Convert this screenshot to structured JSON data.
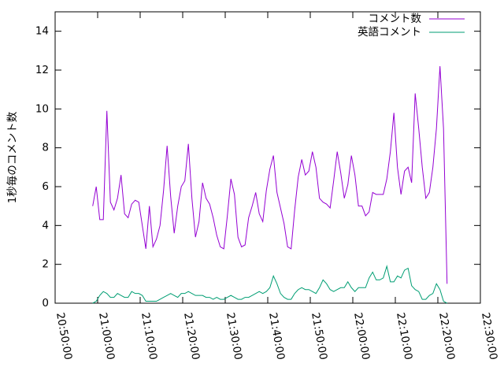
{
  "chart_data": {
    "type": "line",
    "y_label": "1秒毎のコメント数",
    "x": [
      "20:58:50",
      "20:59:40",
      "21:00:30",
      "21:01:20",
      "21:02:10",
      "21:03:00",
      "21:03:50",
      "21:04:40",
      "21:05:30",
      "21:06:20",
      "21:07:10",
      "21:08:00",
      "21:08:50",
      "21:09:40",
      "21:10:30",
      "21:11:20",
      "21:12:10",
      "21:13:00",
      "21:13:50",
      "21:14:40",
      "21:15:30",
      "21:16:20",
      "21:17:10",
      "21:18:00",
      "21:18:50",
      "21:19:40",
      "21:20:30",
      "21:21:20",
      "21:22:10",
      "21:23:00",
      "21:23:50",
      "21:24:40",
      "21:25:30",
      "21:26:20",
      "21:27:10",
      "21:28:00",
      "21:28:50",
      "21:29:40",
      "21:30:30",
      "21:31:20",
      "21:32:10",
      "21:33:00",
      "21:33:50",
      "21:34:40",
      "21:35:30",
      "21:36:20",
      "21:37:10",
      "21:38:00",
      "21:38:50",
      "21:39:40",
      "21:40:30",
      "21:41:20",
      "21:42:10",
      "21:43:00",
      "21:43:50",
      "21:44:40",
      "21:45:30",
      "21:46:20",
      "21:47:10",
      "21:48:00",
      "21:48:50",
      "21:49:40",
      "21:50:30",
      "21:51:20",
      "21:52:10",
      "21:53:00",
      "21:53:50",
      "21:54:40",
      "21:55:30",
      "21:56:20",
      "21:57:10",
      "21:58:00",
      "21:58:50",
      "21:59:40",
      "22:00:30",
      "22:01:20",
      "22:02:10",
      "22:03:00",
      "22:03:50",
      "22:04:40",
      "22:05:30",
      "22:06:20",
      "22:07:10",
      "22:08:00",
      "22:08:50",
      "22:09:40",
      "22:10:30",
      "22:11:20",
      "22:12:10",
      "22:13:00",
      "22:13:50",
      "22:14:40",
      "22:15:30",
      "22:16:20",
      "22:17:10",
      "22:18:00",
      "22:18:50",
      "22:19:40",
      "22:20:30",
      "22:21:20",
      "22:22:10"
    ],
    "series": [
      {
        "name": "コメント数",
        "color": "#9400d3",
        "values": [
          5.0,
          6.0,
          4.3,
          4.3,
          9.9,
          5.2,
          4.8,
          5.4,
          6.6,
          4.6,
          4.4,
          5.1,
          5.3,
          5.2,
          4.0,
          2.8,
          5.0,
          2.9,
          3.3,
          4.0,
          5.8,
          8.1,
          5.5,
          3.6,
          5.0,
          6.0,
          6.3,
          8.2,
          5.4,
          3.4,
          4.2,
          6.2,
          5.4,
          5.1,
          4.4,
          3.5,
          2.9,
          2.8,
          4.5,
          6.4,
          5.6,
          3.4,
          2.9,
          3.0,
          4.4,
          5.0,
          5.7,
          4.6,
          4.2,
          5.8,
          6.9,
          7.6,
          5.7,
          4.9,
          4.1,
          2.9,
          2.8,
          4.8,
          6.5,
          7.4,
          6.6,
          6.8,
          7.8,
          7.0,
          5.4,
          5.2,
          5.1,
          4.9,
          6.3,
          7.8,
          6.7,
          5.4,
          6.1,
          7.6,
          6.6,
          5.0,
          5.0,
          4.5,
          4.7,
          5.7,
          5.6,
          5.6,
          5.6,
          6.4,
          7.8,
          9.8,
          7.0,
          5.6,
          6.8,
          7.0,
          6.2,
          10.8,
          9.0,
          7.0,
          5.4,
          5.7,
          7.0,
          9.0,
          12.2,
          9.0,
          1.0
        ]
      },
      {
        "name": "英語コメント",
        "color": "#009e73",
        "values": [
          0.0,
          0.1,
          0.4,
          0.6,
          0.5,
          0.3,
          0.3,
          0.5,
          0.4,
          0.3,
          0.3,
          0.6,
          0.5,
          0.5,
          0.4,
          0.1,
          0.1,
          0.1,
          0.1,
          0.2,
          0.3,
          0.4,
          0.5,
          0.4,
          0.3,
          0.5,
          0.5,
          0.6,
          0.5,
          0.4,
          0.4,
          0.4,
          0.3,
          0.3,
          0.2,
          0.3,
          0.2,
          0.2,
          0.3,
          0.4,
          0.3,
          0.2,
          0.2,
          0.3,
          0.3,
          0.4,
          0.5,
          0.6,
          0.5,
          0.6,
          0.8,
          1.4,
          1.0,
          0.5,
          0.3,
          0.2,
          0.2,
          0.5,
          0.7,
          0.8,
          0.7,
          0.7,
          0.6,
          0.5,
          0.8,
          1.2,
          1.0,
          0.7,
          0.6,
          0.7,
          0.8,
          0.8,
          1.1,
          0.8,
          0.6,
          0.8,
          0.8,
          0.8,
          1.3,
          1.6,
          1.2,
          1.2,
          1.3,
          1.9,
          1.1,
          1.1,
          1.4,
          1.3,
          1.7,
          1.8,
          0.9,
          0.7,
          0.6,
          0.2,
          0.2,
          0.4,
          0.5,
          1.0,
          0.7,
          0.1,
          0.0
        ]
      }
    ],
    "xlim": [
      "20:50:00",
      "22:30:00"
    ],
    "xticks": [
      "20:50:00",
      "21:00:00",
      "21:10:00",
      "21:20:00",
      "21:30:00",
      "21:40:00",
      "21:50:00",
      "22:00:00",
      "22:10:00",
      "22:20:00",
      "22:30:00"
    ],
    "ylim": [
      0,
      15
    ],
    "yticks": [
      0,
      2,
      4,
      6,
      8,
      10,
      12,
      14
    ],
    "legend": "top-right"
  }
}
